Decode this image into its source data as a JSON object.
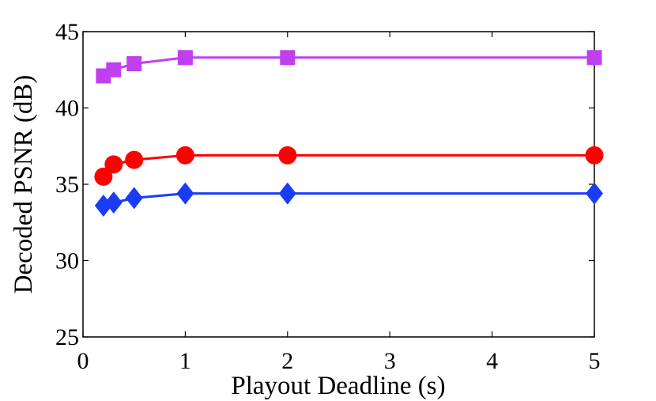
{
  "chart_data": {
    "type": "line",
    "xlabel": "Playout Deadline (s)",
    "ylabel": "Decoded PSNR (dB)",
    "xlim": [
      0,
      5
    ],
    "ylim": [
      25,
      45
    ],
    "xticks": [
      0,
      1,
      2,
      3,
      4,
      5
    ],
    "yticks": [
      25,
      30,
      35,
      40,
      45
    ],
    "x": [
      0.2,
      0.3,
      0.5,
      1,
      2,
      5
    ],
    "grid": false,
    "series": [
      {
        "marker": "square",
        "color": "#c040f0",
        "values": [
          42.1,
          42.5,
          42.9,
          43.3,
          43.3,
          43.3
        ]
      },
      {
        "marker": "circle",
        "color": "#ff0000",
        "values": [
          35.5,
          36.3,
          36.6,
          36.9,
          36.9,
          36.9
        ]
      },
      {
        "marker": "diamond",
        "color": "#1a3cf5",
        "values": [
          33.6,
          33.8,
          34.1,
          34.4,
          34.4,
          34.4
        ]
      }
    ]
  }
}
